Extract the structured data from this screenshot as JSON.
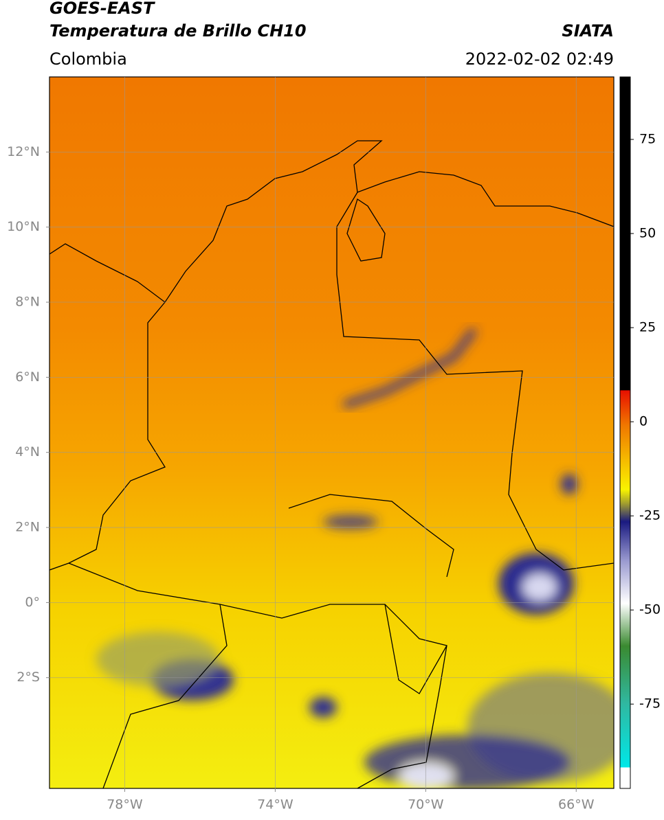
{
  "header": {
    "title": "GOES-EAST",
    "subtitle": "Temperatura de Brillo CH10",
    "source": "SIATA",
    "region": "Colombia",
    "datetime": "2022-02-02 02:49"
  },
  "map": {
    "xlim": [
      -80,
      -65
    ],
    "ylim": [
      -4.95,
      14
    ],
    "xticks": [
      {
        "value": -78,
        "label": "78°W"
      },
      {
        "value": -74,
        "label": "74°W"
      },
      {
        "value": -70,
        "label": "70°W"
      },
      {
        "value": -66,
        "label": "66°W"
      }
    ],
    "yticks": [
      {
        "value": 12,
        "label": "12°N"
      },
      {
        "value": 10,
        "label": "10°N"
      },
      {
        "value": 8,
        "label": "8°N"
      },
      {
        "value": 6,
        "label": "6°N"
      },
      {
        "value": 4,
        "label": "4°N"
      },
      {
        "value": 2,
        "label": "2°N"
      },
      {
        "value": 0,
        "label": "0°"
      },
      {
        "value": -2,
        "label": "2°S"
      }
    ],
    "grid": true
  },
  "colorbar": {
    "lim": [
      -97.4,
      91.6
    ],
    "ticks": [
      75,
      50,
      25,
      0,
      -25,
      -50,
      -75
    ]
  }
}
